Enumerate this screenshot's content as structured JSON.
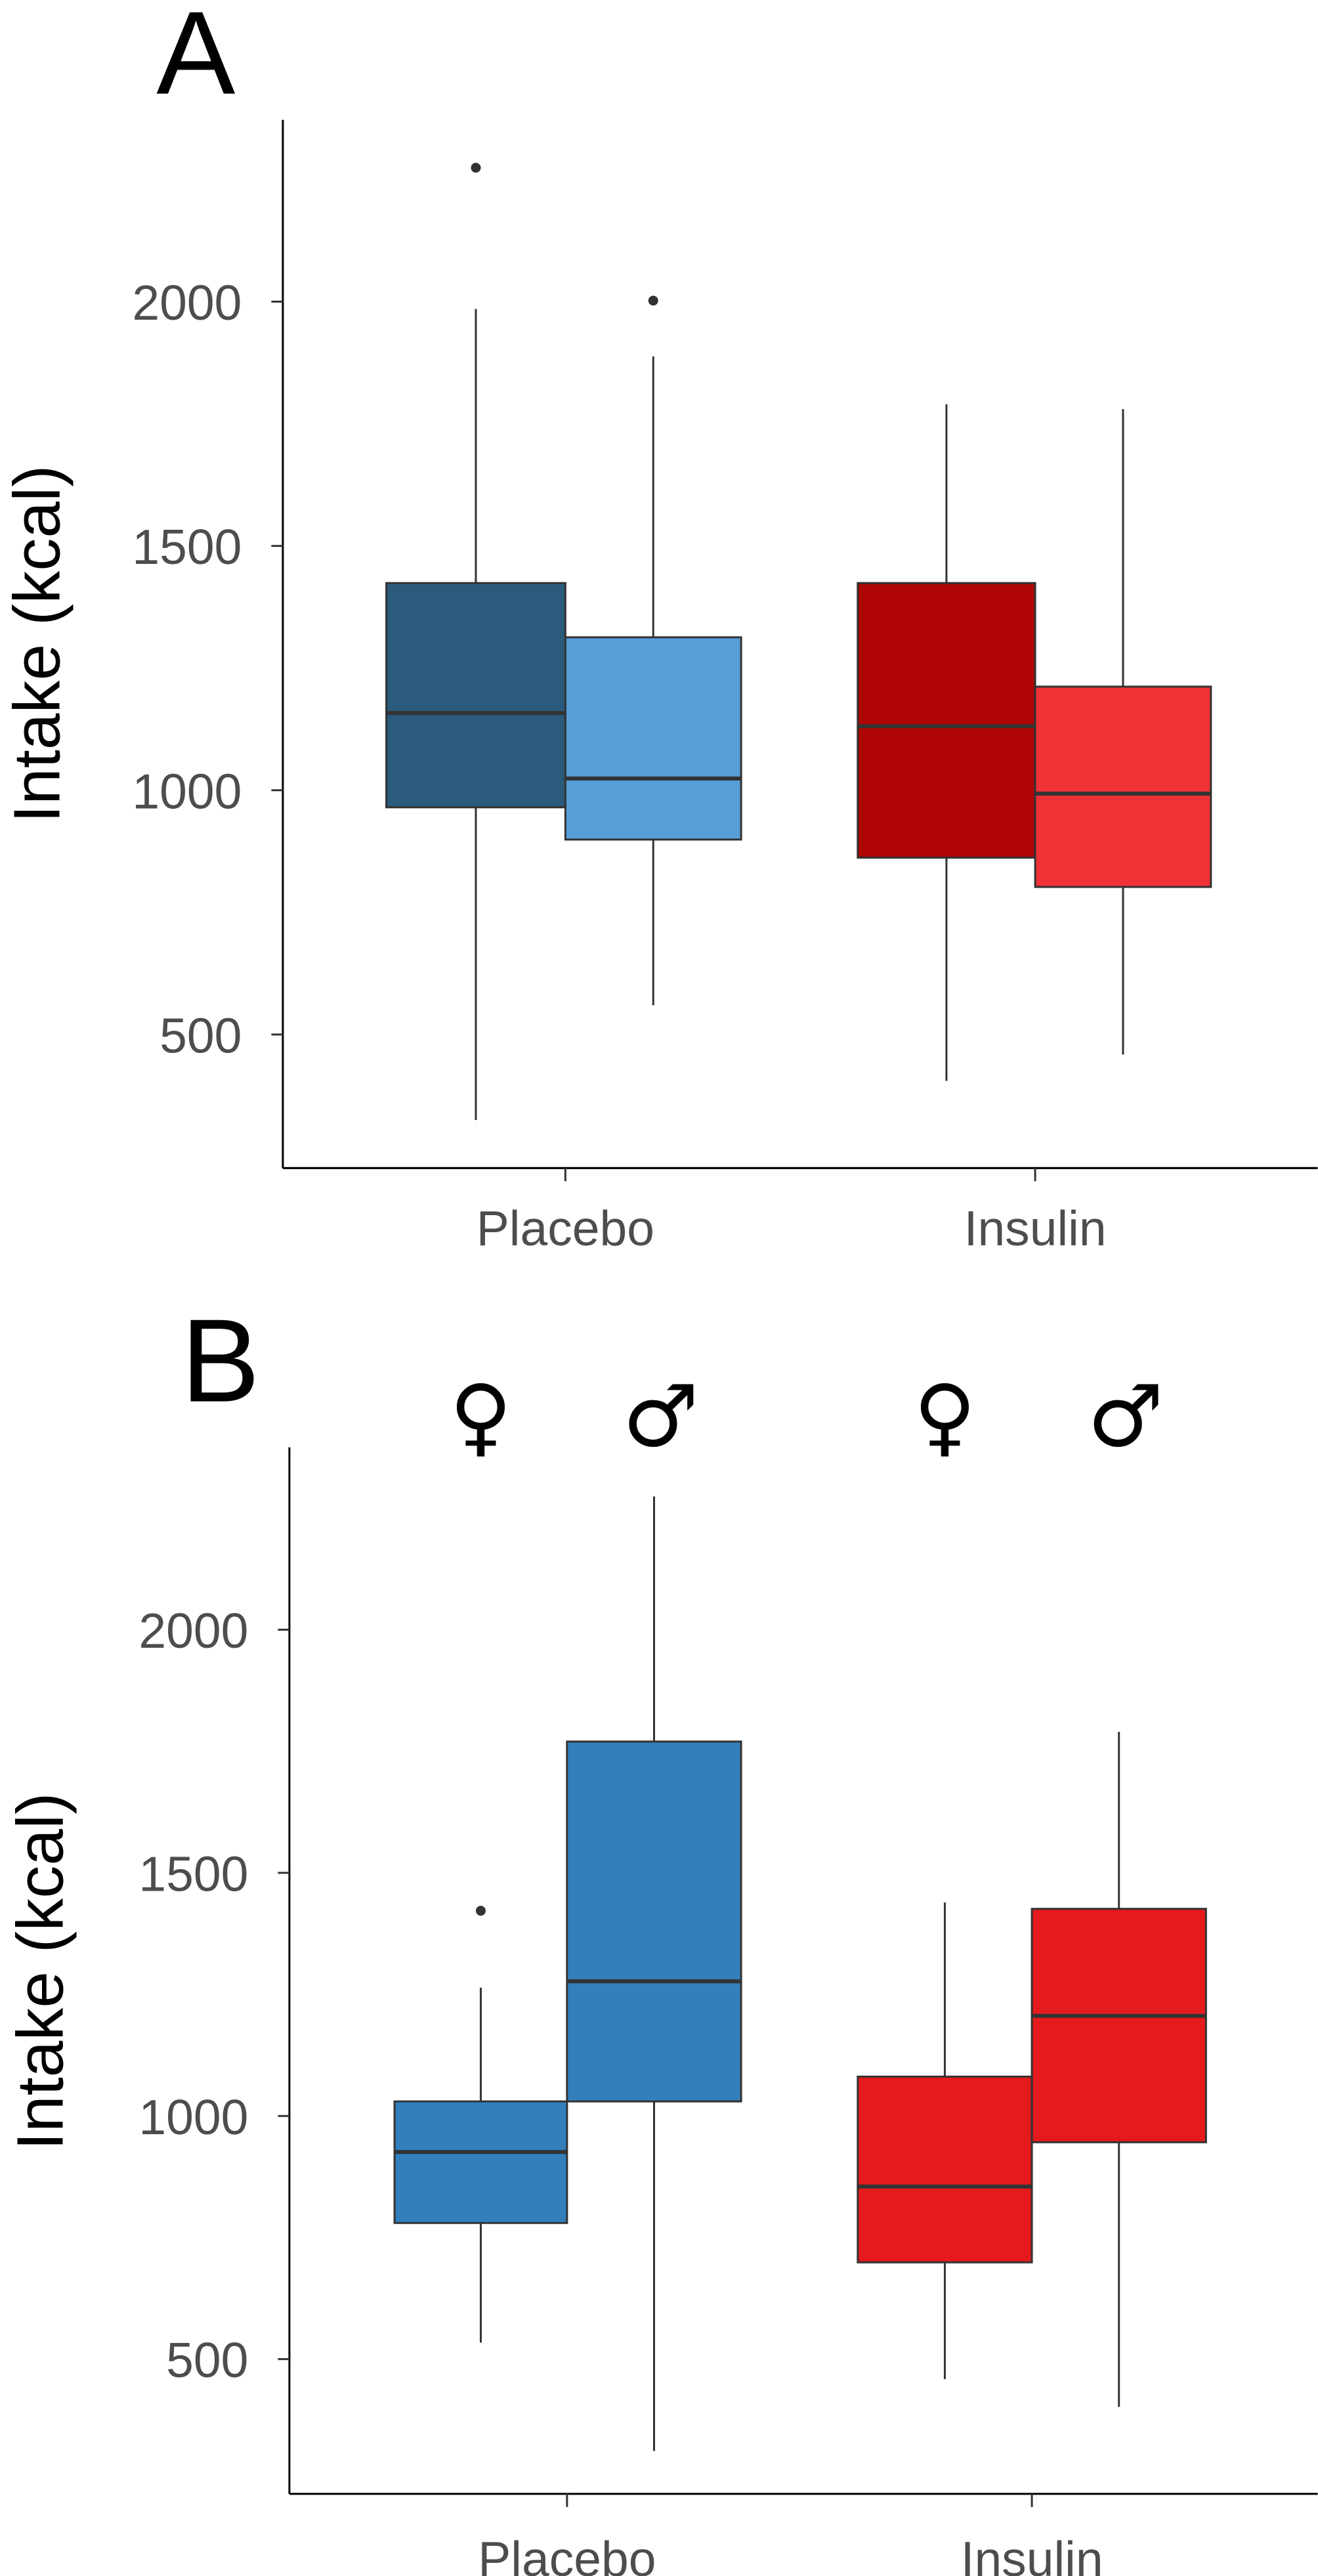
{
  "chart_data": [
    {
      "type": "boxplot",
      "panel_label": "A",
      "ylabel": "Intake (kcal)",
      "xlabel": "",
      "yticks": [
        500,
        1000,
        1500,
        2000
      ],
      "ylim": [
        220,
        2400
      ],
      "categories": [
        "Placebo",
        "Insulin"
      ],
      "grid": false,
      "boxes": [
        {
          "category": "Placebo",
          "color": "#2a5a7c",
          "whisker_low": 325,
          "q1": 965,
          "median": 1158,
          "q3": 1424,
          "whisker_high": 1985,
          "outliers": [
            2274
          ]
        },
        {
          "category": "Placebo",
          "color": "#579ed7",
          "whisker_low": 560,
          "q1": 899,
          "median": 1024,
          "q3": 1313,
          "whisker_high": 1888,
          "outliers": [
            2002
          ]
        },
        {
          "category": "Insulin",
          "color": "#af0505",
          "whisker_low": 405,
          "q1": 862,
          "median": 1131,
          "q3": 1424,
          "whisker_high": 1790,
          "outliers": []
        },
        {
          "category": "Insulin",
          "color": "#ee3236",
          "whisker_low": 459,
          "q1": 802,
          "median": 993,
          "q3": 1212,
          "whisker_high": 1780,
          "outliers": []
        }
      ]
    },
    {
      "type": "boxplot",
      "panel_label": "B",
      "ylabel": "Intake (kcal)",
      "xlabel": "",
      "yticks": [
        500,
        1000,
        1500,
        2000
      ],
      "ylim": [
        220,
        2400
      ],
      "categories": [
        "Placebo",
        "Insulin"
      ],
      "group_symbols": [
        "♀",
        "♂",
        "♀",
        "♂"
      ],
      "grid": false,
      "boxes": [
        {
          "category": "Placebo",
          "group": "♀",
          "color": "#337fbb",
          "whisker_low": 534,
          "q1": 780,
          "median": 926,
          "q3": 1030,
          "whisker_high": 1264,
          "outliers": [
            1422
          ]
        },
        {
          "category": "Placebo",
          "group": "♂",
          "color": "#337fbb",
          "whisker_low": 311,
          "q1": 1030,
          "median": 1277,
          "q3": 1770,
          "whisker_high": 2274,
          "outliers": []
        },
        {
          "category": "Insulin",
          "group": "♀",
          "color": "#e41a1c",
          "whisker_low": 459,
          "q1": 699,
          "median": 855,
          "q3": 1081,
          "whisker_high": 1439,
          "outliers": []
        },
        {
          "category": "Insulin",
          "group": "♂",
          "color": "#e41a1c",
          "whisker_low": 402,
          "q1": 946,
          "median": 1206,
          "q3": 1426,
          "whisker_high": 1790,
          "outliers": []
        }
      ]
    }
  ]
}
